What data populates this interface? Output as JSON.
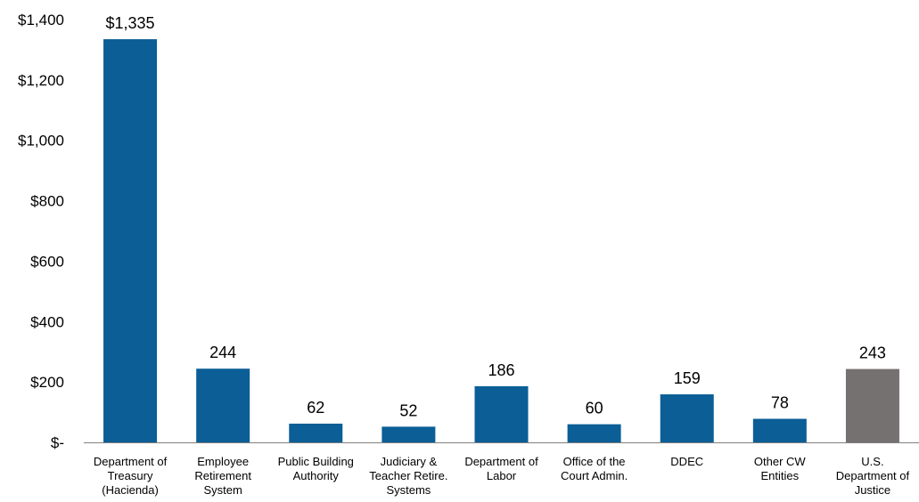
{
  "chart_data": {
    "type": "bar",
    "categories": [
      [
        "Department of",
        "Treasury",
        "(Hacienda)"
      ],
      [
        "Employee",
        "Retirement",
        "System"
      ],
      [
        "Public Building",
        "Authority"
      ],
      [
        "Judiciary &",
        "Teacher Retire.",
        "Systems"
      ],
      [
        "Department of",
        "Labor"
      ],
      [
        "Office of the",
        "Court Admin."
      ],
      [
        "DDEC"
      ],
      [
        "Other CW",
        "Entities"
      ],
      [
        "U.S.",
        "Department of",
        "Justice"
      ]
    ],
    "values": [
      1335,
      244,
      62,
      52,
      186,
      60,
      159,
      78,
      243
    ],
    "data_labels": [
      "$1,335",
      "244",
      "62",
      "52",
      "186",
      "60",
      "159",
      "78",
      "243"
    ],
    "bar_colors": [
      "#0b5e96",
      "#0b5e96",
      "#0b5e96",
      "#0b5e96",
      "#0b5e96",
      "#0b5e96",
      "#0b5e96",
      "#0b5e96",
      "#767171"
    ],
    "yticks": [
      0,
      200,
      400,
      600,
      800,
      1000,
      1200,
      1400
    ],
    "ytick_labels": [
      "$-",
      "$200",
      "$400",
      "$600",
      "$800",
      "$1,000",
      "$1,200",
      "$1,400"
    ],
    "ylim": [
      0,
      1400
    ],
    "grid": false,
    "title": "",
    "xlabel": "",
    "ylabel": ""
  }
}
